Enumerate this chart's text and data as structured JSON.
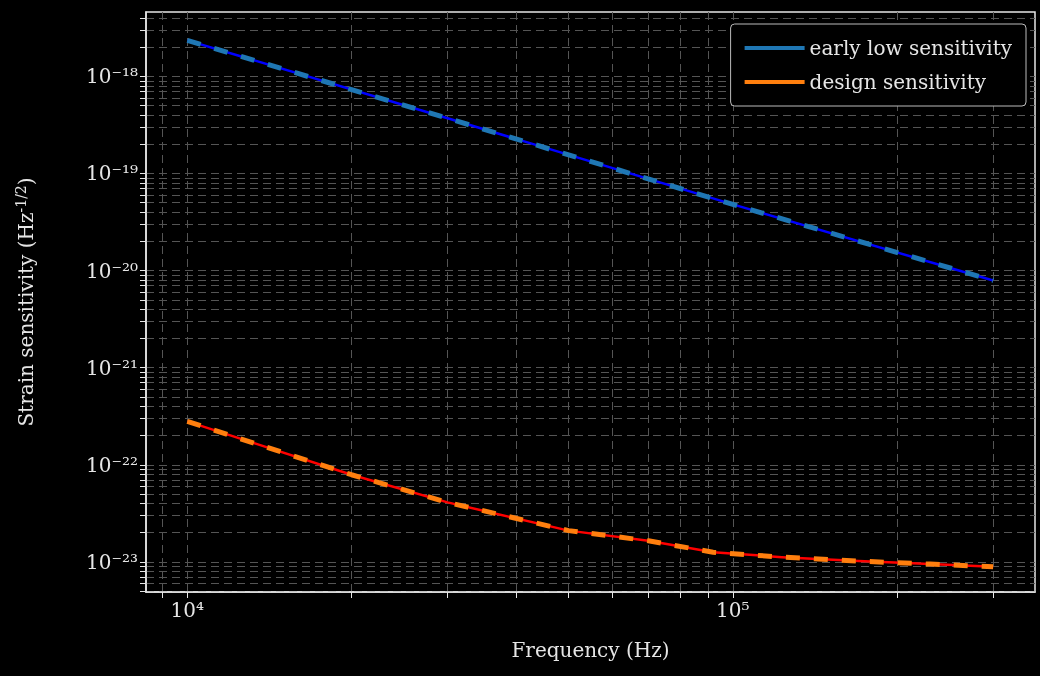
{
  "chart_data": {
    "type": "line",
    "xlabel": "Frequency (Hz)",
    "ylabel": "Strain sensitivity (Hz$^{-1/2}$)",
    "log": "xy",
    "grid": true,
    "legend": "top right",
    "marker": "none",
    "xlim": [
      8400,
      358000
    ],
    "ylim": [
      4.9e-24,
      4.6e-18
    ],
    "xticks": [
      {
        "value": 9000,
        "label": null
      },
      {
        "value": 10000,
        "label": "10⁴"
      },
      {
        "value": 20000,
        "label": null
      },
      {
        "value": 30000,
        "label": null
      },
      {
        "value": 40000,
        "label": null
      },
      {
        "value": 50000,
        "label": null
      },
      {
        "value": 60000,
        "label": null
      },
      {
        "value": 70000,
        "label": null
      },
      {
        "value": 80000,
        "label": null
      },
      {
        "value": 90000,
        "label": null
      },
      {
        "value": 100000,
        "label": "10⁵"
      },
      {
        "value": 200000,
        "label": null
      },
      {
        "value": 300000,
        "label": null
      }
    ],
    "yticks": [
      {
        "value": 5e-24,
        "label": null
      },
      {
        "value": 6e-24,
        "label": null
      },
      {
        "value": 7e-24,
        "label": null
      },
      {
        "value": 8e-24,
        "label": null
      },
      {
        "value": 9e-24,
        "label": null
      },
      {
        "value": 1e-23,
        "label": "10⁻²³"
      },
      {
        "value": 2e-23,
        "label": null
      },
      {
        "value": 3e-23,
        "label": null
      },
      {
        "value": 4e-23,
        "label": null
      },
      {
        "value": 5e-23,
        "label": null
      },
      {
        "value": 6e-23,
        "label": null
      },
      {
        "value": 7e-23,
        "label": null
      },
      {
        "value": 8e-23,
        "label": null
      },
      {
        "value": 9e-23,
        "label": null
      },
      {
        "value": 1e-22,
        "label": "10⁻²²"
      },
      {
        "value": 2e-22,
        "label": null
      },
      {
        "value": 3e-22,
        "label": null
      },
      {
        "value": 4e-22,
        "label": null
      },
      {
        "value": 5e-22,
        "label": null
      },
      {
        "value": 6e-22,
        "label": null
      },
      {
        "value": 7e-22,
        "label": null
      },
      {
        "value": 8e-22,
        "label": null
      },
      {
        "value": 9e-22,
        "label": null
      },
      {
        "value": 1e-21,
        "label": "10⁻²¹"
      },
      {
        "value": 2e-21,
        "label": null
      },
      {
        "value": 3e-21,
        "label": null
      },
      {
        "value": 4e-21,
        "label": null
      },
      {
        "value": 5e-21,
        "label": null
      },
      {
        "value": 6e-21,
        "label": null
      },
      {
        "value": 7e-21,
        "label": null
      },
      {
        "value": 8e-21,
        "label": null
      },
      {
        "value": 9e-21,
        "label": null
      },
      {
        "value": 1e-20,
        "label": "10⁻²⁰"
      },
      {
        "value": 2e-20,
        "label": null
      },
      {
        "value": 3e-20,
        "label": null
      },
      {
        "value": 4e-20,
        "label": null
      },
      {
        "value": 5e-20,
        "label": null
      },
      {
        "value": 6e-20,
        "label": null
      },
      {
        "value": 7e-20,
        "label": null
      },
      {
        "value": 8e-20,
        "label": null
      },
      {
        "value": 9e-20,
        "label": null
      },
      {
        "value": 1e-19,
        "label": "10⁻¹⁹"
      },
      {
        "value": 2e-19,
        "label": null
      },
      {
        "value": 3e-19,
        "label": null
      },
      {
        "value": 4e-19,
        "label": null
      },
      {
        "value": 5e-19,
        "label": null
      },
      {
        "value": 6e-19,
        "label": null
      },
      {
        "value": 7e-19,
        "label": null
      },
      {
        "value": 8e-19,
        "label": null
      },
      {
        "value": 9e-19,
        "label": null
      },
      {
        "value": 1e-18,
        "label": "10⁻¹⁸"
      },
      {
        "value": 2e-18,
        "label": null
      },
      {
        "value": 3e-18,
        "label": null
      },
      {
        "value": 4e-18,
        "label": null
      }
    ],
    "series": [
      {
        "color": "#0000ff",
        "line_style": "solid",
        "x": [
          10000,
          30000,
          100000,
          300000
        ],
        "values": [
          2.35e-18,
          3.7e-19,
          4.8e-20,
          7.9e-21
        ]
      },
      {
        "name": "early low sensitivity",
        "color": "#1f77b4",
        "line_style": "dashed",
        "x": [
          10000,
          30000,
          100000,
          300000
        ],
        "values": [
          2.35e-18,
          3.7e-19,
          4.8e-20,
          7.9e-21
        ]
      },
      {
        "color": "#ff0000",
        "line_style": "solid",
        "x": [
          10000,
          13300,
          20000,
          30000,
          50000,
          70000,
          92000,
          123000,
          170000,
          230000,
          300000
        ],
        "values": [
          2.8e-22,
          1.66e-22,
          7.9e-23,
          4.1e-23,
          2.1e-23,
          1.65e-23,
          1.26e-23,
          1.12e-23,
          1.02e-23,
          9.5e-24,
          8.9e-24
        ]
      },
      {
        "name": "design sensitivity",
        "color": "#ff7f0e",
        "line_style": "dashed",
        "x": [
          10000,
          13300,
          20000,
          30000,
          50000,
          70000,
          92000,
          123000,
          170000,
          230000,
          300000
        ],
        "values": [
          2.8e-22,
          1.66e-22,
          7.9e-23,
          4.1e-23,
          2.1e-23,
          1.65e-23,
          1.26e-23,
          1.12e-23,
          1.02e-23,
          9.5e-24,
          8.9e-24
        ]
      }
    ]
  }
}
